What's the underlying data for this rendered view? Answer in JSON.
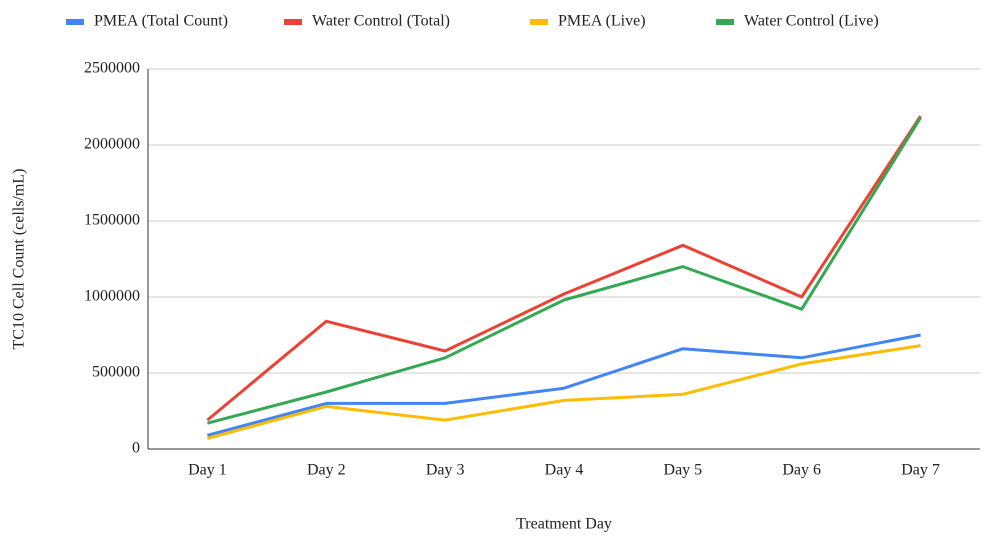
{
  "chart_data": {
    "type": "line",
    "x_label": "Treatment Day",
    "y_label": "TC10 Cell Count (cells/mL)",
    "categories": [
      "Day 1",
      "Day 2",
      "Day 3",
      "Day 4",
      "Day 5",
      "Day 6",
      "Day 7"
    ],
    "series": [
      {
        "name": "PMEA (Total Count)",
        "color": "#4285f4",
        "values": [
          90000,
          300000,
          300000,
          400000,
          660000,
          600000,
          750000
        ]
      },
      {
        "name": "Water Control (Total)",
        "color": "#ea4335",
        "values": [
          190000,
          840000,
          645000,
          1020000,
          1340000,
          1000000,
          2190000
        ]
      },
      {
        "name": "PMEA (Live)",
        "color": "#fbbc04",
        "values": [
          70000,
          280000,
          190000,
          320000,
          360000,
          560000,
          680000
        ]
      },
      {
        "name": "Water Control (Live)",
        "color": "#34a853",
        "values": [
          170000,
          375000,
          600000,
          980000,
          1200000,
          920000,
          2180000
        ]
      }
    ],
    "ylim": [
      0,
      2500000
    ],
    "yticks": [
      0,
      500000,
      1000000,
      1500000,
      2000000,
      2500000
    ],
    "grid": true,
    "legend": "top"
  }
}
